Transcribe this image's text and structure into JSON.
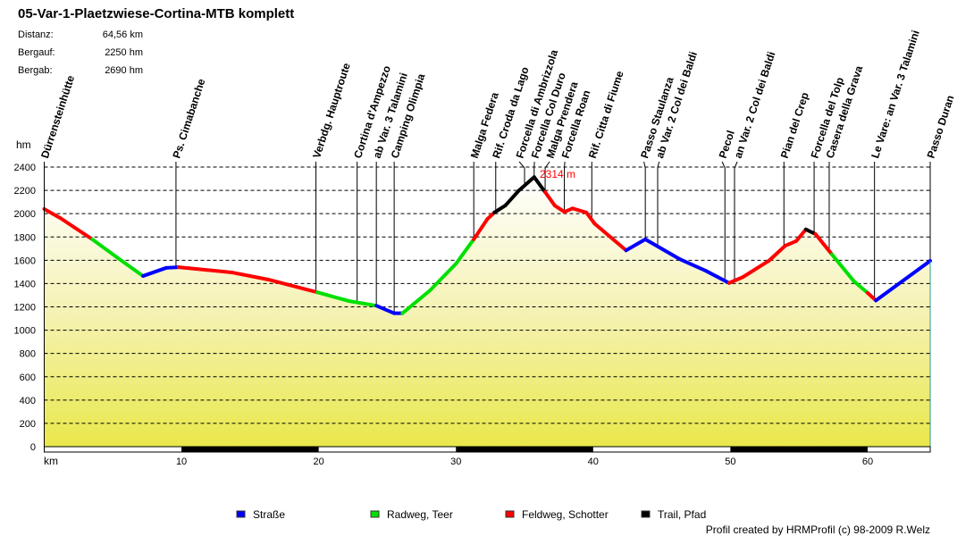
{
  "chart_data": {
    "type": "area",
    "title": "05-Var-1-Plaetzwiese-Cortina-MTB komplett",
    "stats": [
      {
        "label": "Distanz:",
        "value": "64,56 km"
      },
      {
        "label": "Bergauf:",
        "value": "2250 hm"
      },
      {
        "label": "Bergab:",
        "value": "2690 hm"
      }
    ],
    "ylabel": "hm",
    "xlabel": "km",
    "xlim": [
      0,
      64.56
    ],
    "ylim": [
      0,
      2400
    ],
    "yticks": [
      0,
      200,
      400,
      600,
      800,
      1000,
      1200,
      1400,
      1600,
      1800,
      2000,
      2200,
      2400
    ],
    "xticks": [
      10,
      20,
      30,
      40,
      50,
      60
    ],
    "grid": true,
    "max_label": "2314 m",
    "max_point": {
      "km": 35.7,
      "elev": 2314
    },
    "surface_colors": {
      "S": "#0000ff",
      "R": "#00e000",
      "F": "#ff0000",
      "T": "#000000"
    },
    "legend": [
      {
        "key": "S",
        "label": "Straße"
      },
      {
        "key": "R",
        "label": "Radweg, Teer"
      },
      {
        "key": "F",
        "label": "Feldweg, Schotter"
      },
      {
        "key": "T",
        "label": "Trail, Pfad"
      }
    ],
    "profile": [
      [
        0,
        2040,
        "F"
      ],
      [
        1.2,
        1960,
        "F"
      ],
      [
        3.5,
        1780,
        "R"
      ],
      [
        5.3,
        1625,
        "R"
      ],
      [
        7.2,
        1465,
        "S"
      ],
      [
        8.9,
        1535,
        "S"
      ],
      [
        9.8,
        1540,
        "F"
      ],
      [
        13.7,
        1495,
        "F"
      ],
      [
        16.3,
        1435,
        "F"
      ],
      [
        19.9,
        1325,
        "R"
      ],
      [
        22.2,
        1250,
        "R"
      ],
      [
        24.2,
        1210,
        "S"
      ],
      [
        25.5,
        1145,
        "S"
      ],
      [
        26.1,
        1145,
        "R"
      ],
      [
        28.1,
        1340,
        "R"
      ],
      [
        30,
        1570,
        "R"
      ],
      [
        31.3,
        1780,
        "F"
      ],
      [
        32.3,
        1955,
        "F"
      ],
      [
        32.8,
        2010,
        "T"
      ],
      [
        33.6,
        2070,
        "T"
      ],
      [
        34.6,
        2200,
        "T"
      ],
      [
        35.7,
        2314,
        "T"
      ],
      [
        36.5,
        2185,
        "F"
      ],
      [
        37.2,
        2070,
        "F"
      ],
      [
        37.9,
        2015,
        "F"
      ],
      [
        38.5,
        2045,
        "F"
      ],
      [
        39.5,
        2010,
        "F"
      ],
      [
        40.1,
        1915,
        "F"
      ],
      [
        42.4,
        1685,
        "S"
      ],
      [
        43.8,
        1780,
        "S"
      ],
      [
        46.3,
        1610,
        "S"
      ],
      [
        48.2,
        1510,
        "S"
      ],
      [
        49.9,
        1405,
        "F"
      ],
      [
        50.9,
        1455,
        "F"
      ],
      [
        52.8,
        1595,
        "F"
      ],
      [
        54,
        1725,
        "F"
      ],
      [
        54.8,
        1765,
        "F"
      ],
      [
        55.5,
        1865,
        "T"
      ],
      [
        56.2,
        1825,
        "F"
      ],
      [
        57.4,
        1650,
        "R"
      ],
      [
        59,
        1420,
        "R"
      ],
      [
        60,
        1320,
        "F"
      ],
      [
        60.6,
        1255,
        "S"
      ],
      [
        64.56,
        1595,
        "S"
      ]
    ],
    "waypoints": [
      {
        "km": 0,
        "name": "Dürrensteinhütte"
      },
      {
        "km": 9.6,
        "name": "Ps. Cimabanche"
      },
      {
        "km": 19.8,
        "name": "Verbdg. Hauptroute"
      },
      {
        "km": 22.8,
        "name": "Cortina d'Ampezzo"
      },
      {
        "km": 24.2,
        "name": "ab Var. 3 Talamini"
      },
      {
        "km": 25.5,
        "name": "Camping Olimpia"
      },
      {
        "km": 31.3,
        "name": "Malga Federa"
      },
      {
        "km": 32.9,
        "name": "Rif. Croda da Lago"
      },
      {
        "km": 35.0,
        "name": "Forcella di Ambrizzola"
      },
      {
        "km": 35.7,
        "name": "Forcella Col Duro"
      },
      {
        "km": 36.5,
        "name": "Malga Prendera"
      },
      {
        "km": 37.9,
        "name": "Forcella Roan"
      },
      {
        "km": 39.9,
        "name": "Rif. Citta di Fiume"
      },
      {
        "km": 43.8,
        "name": "Passo Staulanza"
      },
      {
        "km": 44.7,
        "name": "ab Var. 2 Col dei Baldi"
      },
      {
        "km": 49.6,
        "name": "Pecol"
      },
      {
        "km": 50.3,
        "name": "an Var. 2 Col dei Baldi"
      },
      {
        "km": 53.9,
        "name": "Pian del Crep"
      },
      {
        "km": 56.1,
        "name": "Forcella del Tolp"
      },
      {
        "km": 57.2,
        "name": "Casera della Grava"
      },
      {
        "km": 60.5,
        "name": "Le Vare: an Var. 3 Talamini"
      },
      {
        "km": 64.56,
        "name": "Passo Duran"
      }
    ],
    "credit": "Profil created by HRMProfil (c) 98-2009 R.Welz"
  }
}
